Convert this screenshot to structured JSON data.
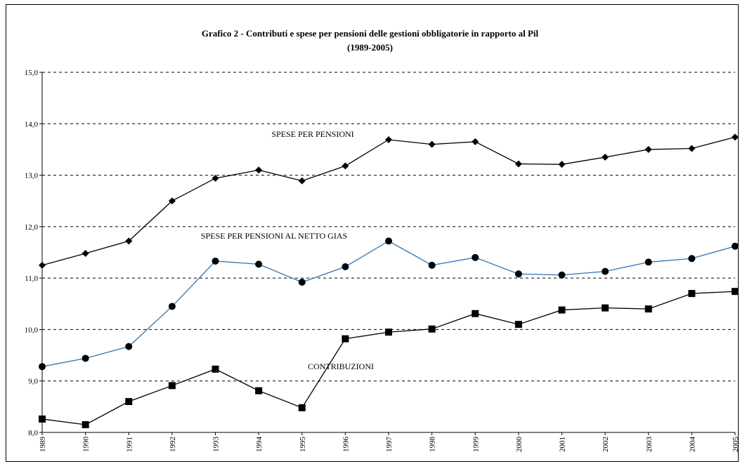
{
  "chart_data": {
    "type": "line",
    "title": "Grafico  2  -  Contributi e spese per pensioni delle gestioni obbligatorie in rapporto al Pil",
    "subtitle": "(1989-2005)",
    "xlabel": "",
    "ylabel": "",
    "categories": [
      "1989",
      "1990",
      "1991",
      "1992",
      "1993",
      "1994",
      "1995",
      "1996",
      "1997",
      "1998",
      "1999",
      "2000",
      "2001",
      "2002",
      "2003",
      "2004",
      "2005"
    ],
    "ylim": [
      8.0,
      15.0
    ],
    "yticks": [
      "8,0",
      "9,0",
      "10,0",
      "11,0",
      "12,0",
      "13,0",
      "14,0",
      "15,0"
    ],
    "grid": "horizontal dashed",
    "legend": "none",
    "series": [
      {
        "name": "SPESE PER PENSIONI",
        "color": "#000000",
        "marker": "diamond",
        "values": [
          11.25,
          11.48,
          11.72,
          12.5,
          12.94,
          13.1,
          12.89,
          13.18,
          13.69,
          13.6,
          13.65,
          13.22,
          13.21,
          13.35,
          13.5,
          13.52,
          13.74
        ]
      },
      {
        "name": "SPESE PER PENSIONI AL NETTO GIAS",
        "color": "#2E75B6",
        "marker": "circle",
        "values": [
          9.28,
          9.44,
          9.67,
          10.45,
          11.33,
          11.27,
          10.92,
          11.22,
          11.72,
          11.25,
          11.4,
          11.08,
          11.06,
          11.13,
          11.31,
          11.38,
          11.62
        ]
      },
      {
        "name": "CONTRIBUZIONI",
        "color": "#000000",
        "marker": "square",
        "values": [
          8.26,
          8.15,
          8.6,
          8.91,
          9.23,
          8.81,
          8.48,
          9.82,
          9.95,
          10.01,
          10.31,
          10.1,
          10.38,
          10.42,
          10.4,
          10.7,
          10.74
        ]
      }
    ]
  }
}
